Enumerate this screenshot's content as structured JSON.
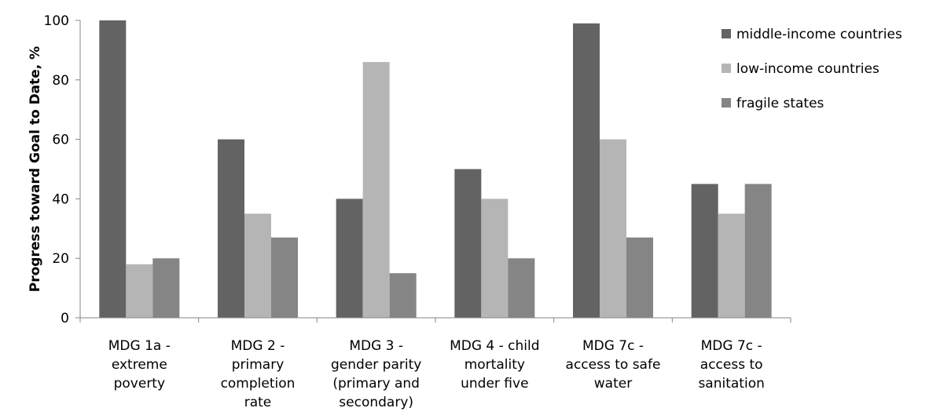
{
  "chart_data": {
    "type": "bar",
    "categories": [
      [
        "MDG 1a -",
        "extreme",
        "poverty"
      ],
      [
        "MDG 2 -",
        "primary",
        "completion",
        "rate"
      ],
      [
        "MDG 3 -",
        "gender parity",
        "(primary and",
        "secondary)"
      ],
      [
        "MDG 4 - child",
        "mortality",
        "under five"
      ],
      [
        "MDG 7c -",
        "access to safe",
        "water"
      ],
      [
        "MDG 7c -",
        "access to",
        "sanitation"
      ]
    ],
    "series": [
      {
        "name": "middle-income countries",
        "color": "#636363",
        "values": [
          100,
          60,
          40,
          50,
          99,
          45
        ]
      },
      {
        "name": "low-income countries",
        "color": "#b5b5b5",
        "values": [
          18,
          35,
          86,
          40,
          60,
          35
        ]
      },
      {
        "name": "fragile states",
        "color": "#858585",
        "values": [
          20,
          27,
          15,
          20,
          27,
          45
        ]
      }
    ],
    "title": "",
    "xlabel": "",
    "ylabel": "Progress toward Goal to Date, %",
    "ylim": [
      0,
      100
    ],
    "yticks": [
      0,
      20,
      40,
      60,
      80,
      100
    ],
    "grid": false,
    "legend_position": "top-right"
  }
}
